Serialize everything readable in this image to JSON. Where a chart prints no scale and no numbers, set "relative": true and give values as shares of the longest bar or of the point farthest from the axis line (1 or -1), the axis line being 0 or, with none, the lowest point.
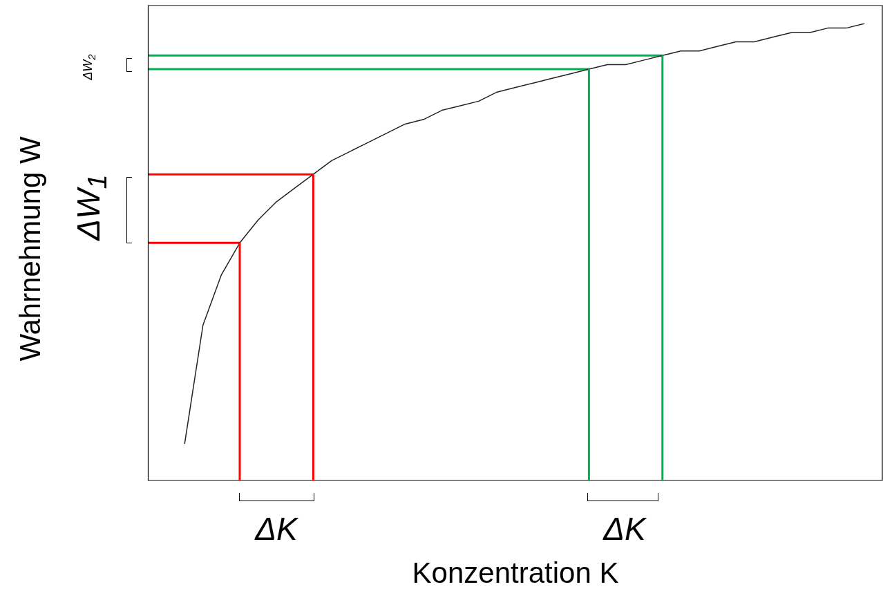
{
  "chart_data": {
    "type": "line",
    "relative": true,
    "xlabel": "Konzentration K",
    "ylabel": "Wahrnehmung W",
    "grid": false,
    "legend": false,
    "marker": "none",
    "annotations": [
      "ΔW$_{2}$",
      "ΔW$_{1}$",
      "ΔK",
      "ΔK"
    ],
    "categories": [
      null,
      null,
      null,
      null,
      null,
      null,
      null,
      null,
      null,
      null,
      null,
      null,
      null,
      null,
      null,
      null,
      null,
      null,
      null,
      null,
      null,
      null,
      null,
      null,
      null,
      null,
      null,
      null,
      null,
      null,
      null,
      null,
      null,
      null,
      null,
      null,
      null,
      null,
      null,
      null,
      null
    ],
    "series": [
      {
        "color": "#222222",
        "values": [
          null,
          null,
          0.08,
          0.34,
          0.45,
          0.52,
          0.57,
          0.61,
          0.64,
          0.67,
          0.7,
          0.72,
          0.74,
          0.76,
          0.78,
          0.79,
          0.81,
          0.82,
          0.83,
          0.85,
          0.86,
          0.87,
          0.88,
          0.89,
          0.9,
          0.91,
          0.91,
          0.92,
          0.93,
          0.94,
          0.94,
          0.95,
          0.96,
          0.96,
          0.97,
          0.98,
          0.98,
          0.99,
          0.99,
          1.0,
          null
        ]
      },
      {
        "type": "step",
        "color": "#ff0000",
        "values": [
          0.52,
          0.52,
          0.52,
          0.52,
          0.52,
          0.52,
          null,
          null,
          null,
          null,
          null,
          null,
          null,
          null,
          null,
          null,
          null,
          null,
          null,
          null,
          null,
          null,
          null,
          null,
          null,
          null,
          null,
          null,
          null,
          null,
          null,
          null,
          null,
          null,
          null,
          null,
          null,
          null,
          null,
          null,
          null
        ]
      },
      {
        "type": "step",
        "color": "#ff0000",
        "values": [
          0.67,
          0.67,
          0.67,
          0.67,
          0.67,
          0.67,
          0.67,
          0.67,
          0.67,
          0.67,
          null,
          null,
          null,
          null,
          null,
          null,
          null,
          null,
          null,
          null,
          null,
          null,
          null,
          null,
          null,
          null,
          null,
          null,
          null,
          null,
          null,
          null,
          null,
          null,
          null,
          null,
          null,
          null,
          null,
          null,
          null
        ]
      },
      {
        "type": "step",
        "color": "#00b050",
        "values": [
          0.9,
          0.9,
          0.9,
          0.9,
          0.9,
          0.9,
          0.9,
          0.9,
          0.9,
          0.9,
          0.9,
          0.9,
          0.9,
          0.9,
          0.9,
          0.9,
          0.9,
          0.9,
          0.9,
          0.9,
          0.9,
          0.9,
          0.9,
          0.9,
          0.9,
          null,
          null,
          null,
          null,
          null,
          null,
          null,
          null,
          null,
          null,
          null,
          null,
          null,
          null,
          null,
          null
        ]
      },
      {
        "type": "step",
        "color": "#00b050",
        "values": [
          0.93,
          0.93,
          0.93,
          0.93,
          0.93,
          0.93,
          0.93,
          0.93,
          0.93,
          0.93,
          0.93,
          0.93,
          0.93,
          0.93,
          0.93,
          0.93,
          0.93,
          0.93,
          0.93,
          0.93,
          0.93,
          0.93,
          0.93,
          0.93,
          0.93,
          0.93,
          0.93,
          0.93,
          0.93,
          null,
          null,
          null,
          null,
          null,
          null,
          null,
          null,
          null,
          null,
          null,
          null
        ]
      }
    ]
  }
}
